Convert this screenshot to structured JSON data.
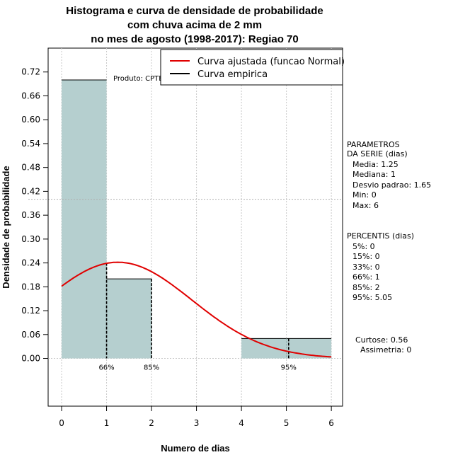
{
  "chart_data": {
    "type": "bar",
    "title_lines": [
      "Histograma e curva de densidade de probabilidade",
      "com chuva acima de 2 mm",
      "no mes de agosto (1998-2017): Regiao 70"
    ],
    "xlabel": "Numero de dias",
    "ylabel": "Densidade de probabilidade",
    "xlim": [
      -0.3,
      6.25
    ],
    "ylim": [
      -0.12,
      0.78
    ],
    "x_ticks": [
      "0",
      "1",
      "2",
      "3",
      "4",
      "5",
      "6"
    ],
    "y_ticks": [
      "0.00",
      "0.06",
      "0.12",
      "0.18",
      "0.24",
      "0.30",
      "0.36",
      "0.42",
      "0.48",
      "0.54",
      "0.60",
      "0.66",
      "0.72"
    ],
    "bins": [
      {
        "from": 0,
        "to": 1,
        "density": 0.7
      },
      {
        "from": 1,
        "to": 2,
        "density": 0.2
      },
      {
        "from": 4,
        "to": 6,
        "density": 0.05
      }
    ],
    "normal_curve": {
      "name": "Curva ajustada (funcao Normal)",
      "mean": 1.25,
      "sd": 1.65,
      "from": 0,
      "to": 6,
      "color": "#e00000"
    },
    "empirical_curve": {
      "name": "Curva empirica",
      "color": "#000000"
    },
    "reference_line_y": 0.4,
    "percentile_markers": [
      {
        "x": 1,
        "label": "66%"
      },
      {
        "x": 2,
        "label": "85%"
      },
      {
        "x": 5.05,
        "label": "95%"
      }
    ],
    "bar_color": "#b5cfcf",
    "watermark": "Produto: CPTEC/INPE"
  },
  "stats": {
    "params_heading": [
      "PARAMETROS",
      "DA SERIE (dias)"
    ],
    "params": [
      "Media: 1.25",
      "Mediana: 1",
      "Desvio padrao: 1.65",
      "Min: 0",
      "Max: 6"
    ],
    "percentis_heading": "PERCENTIS (dias)",
    "percentis": [
      "5%: 0",
      "15%: 0",
      "33%: 0",
      "66%: 1",
      "85%: 2",
      "95%: 5.05"
    ],
    "shape": [
      "Curtose: 0.56",
      "Assimetria: 0"
    ]
  }
}
